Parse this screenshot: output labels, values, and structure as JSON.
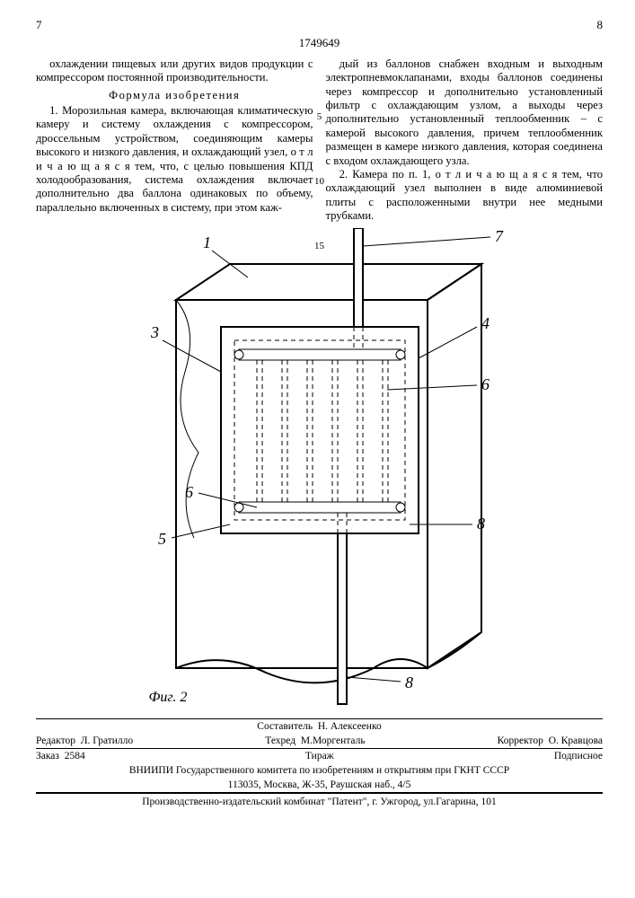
{
  "header": {
    "left_page": "7",
    "right_page": "8",
    "patent_number": "1749649"
  },
  "gutter_numbers": {
    "n5": "5",
    "n10": "10",
    "n15": "15"
  },
  "left_col": {
    "intro": "охлаждении пищевых или других видов продукции с компрессором постоянной производительности.",
    "section_title": "Формула изобретения",
    "claim1": "1. Морозильная камера, включающая климатическую камеру и систему охлаждения с компрессором, дроссельным устройством, соединяющим камеры высокого и низкого давления, и охлаждающий узел, о т л и ч а ю щ а я с я  тем, что, с целью повышения КПД холодообразования, система охлаждения включает дополнительно два баллона одинаковых по объему, параллельно включенных в систему, при этом каж-"
  },
  "right_col": {
    "cont": "дый из баллонов снабжен входным и выходным электропневмоклапанами, входы баллонов соединены через компрессор и дополнительно установленный фильтр с охлаждающим узлом, а выходы через дополнительно установленный теплообменник – с камерой высокого давления, причем теплообменник размещен в камере низкого давления, которая соединена с входом охлаждающего узла.",
    "claim2": "2. Камера по п. 1, о т л и ч а ю щ а я с я тем, что охлаждающий узел выполнен в виде алюминиевой плиты с расположенными внутри нее медными трубками."
  },
  "figure": {
    "caption": "Фиг. 2",
    "labels": {
      "l1": "1",
      "l3": "3",
      "l4": "4",
      "l5": "5",
      "l6a": "6",
      "l6b": "6",
      "l7": "7",
      "l8a": "8",
      "l8b": "8"
    },
    "style": {
      "stroke": "#000000",
      "stroke_width_main": 2,
      "stroke_width_thin": 1,
      "dash": "5,4",
      "label_font_size": 18,
      "label_font_style": "italic",
      "label_font_family": "Times New Roman, serif"
    }
  },
  "credits": {
    "editor_label": "Редактор",
    "editor_name": "Л. Гратилло",
    "compiler_label": "Составитель",
    "compiler_name": "Н. Алексеенко",
    "techred_label": "Техред",
    "techred_name": "М.Моргенталь",
    "corrector_label": "Корректор",
    "corrector_name": "О. Кравцова",
    "order_label": "Заказ",
    "order_num": "2584",
    "tirazh": "Тираж",
    "podpisnoe": "Подписное",
    "vniipi": "ВНИИПИ Государственного комитета по изобретениям и открытиям при ГКНТ СССР",
    "address": "113035, Москва, Ж-35, Раушская наб., 4/5",
    "publisher": "Производственно-издательский комбинат \"Патент\", г. Ужгород, ул.Гагарина, 101"
  }
}
